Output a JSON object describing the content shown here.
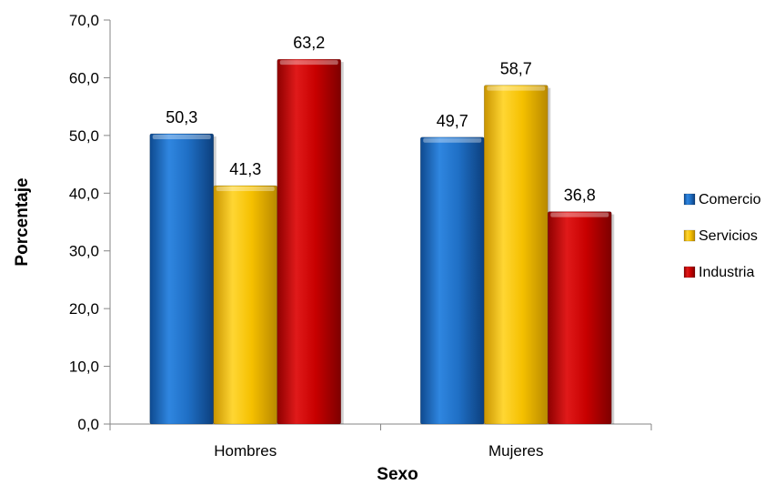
{
  "chart_data": {
    "type": "bar",
    "title": "",
    "xlabel": "Sexo",
    "ylabel": "Porcentaje",
    "categories": [
      "Hombres",
      "Mujeres"
    ],
    "series": [
      {
        "name": "Comercio",
        "values": [
          50.3,
          49.7
        ],
        "value_labels": [
          "50,3",
          "49,7"
        ],
        "color": "#1f6fc5"
      },
      {
        "name": "Servicios",
        "values": [
          41.3,
          58.7
        ],
        "value_labels": [
          "41,3",
          "58,7"
        ],
        "color": "#f5c000"
      },
      {
        "name": "Industria",
        "values": [
          63.2,
          36.8
        ],
        "value_labels": [
          "63,2",
          "36,8"
        ],
        "color": "#c80000"
      }
    ],
    "ylim": [
      0,
      70
    ],
    "yticks": [
      0,
      10,
      20,
      30,
      40,
      50,
      60,
      70
    ],
    "ytick_labels": [
      "0,0",
      "10,0",
      "20,0",
      "30,0",
      "40,0",
      "50,0",
      "60,0",
      "70,0"
    ],
    "grid": false,
    "legend_position": "right"
  }
}
